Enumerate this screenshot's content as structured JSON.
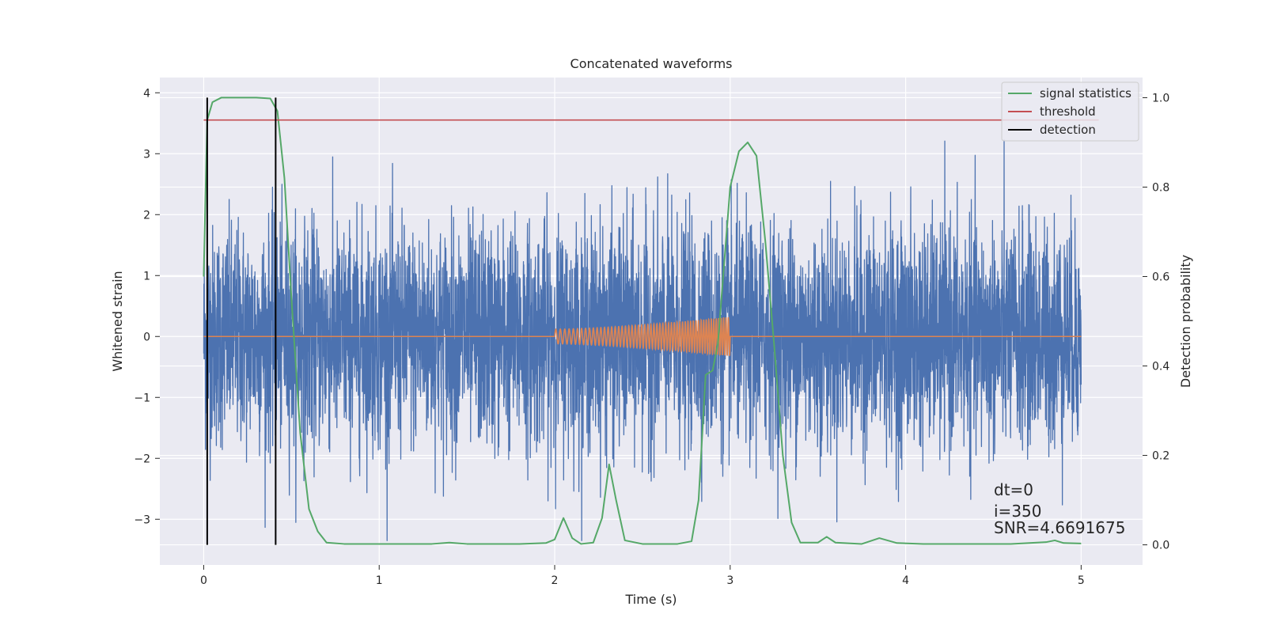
{
  "chart_data": {
    "type": "line",
    "title": "Concatenated waveforms",
    "xlabel": "Time (s)",
    "ylabel_left": "Whitened strain",
    "ylabel_right": "Detection probability",
    "xlim": [
      -0.25,
      5.35
    ],
    "ylim_left": [
      -3.75,
      4.25
    ],
    "ylim_right": [
      -0.045,
      1.045
    ],
    "x_ticks": [
      0,
      1,
      2,
      3,
      4,
      5
    ],
    "y_ticks_left": [
      -3,
      -2,
      -1,
      0,
      1,
      2,
      3,
      4
    ],
    "y_ticks_right": [
      0.0,
      0.2,
      0.4,
      0.6,
      0.8,
      1.0
    ],
    "x_tick_labels": [
      "0",
      "1",
      "2",
      "3",
      "4",
      "5"
    ],
    "y_tick_labels_left": [
      "−3",
      "−2",
      "−1",
      "0",
      "1",
      "2",
      "3",
      "4"
    ],
    "y_tick_labels_right": [
      "0.0",
      "0.2",
      "0.4",
      "0.6",
      "0.8",
      "1.0"
    ],
    "grid": true,
    "legend_position": "top-right",
    "colors": {
      "noise": "#4c72b0",
      "waveform": "#dd8452",
      "signal_statistics": "#55a868",
      "threshold": "#c44e52",
      "detection": "#000000",
      "background": "#eaeaf2",
      "grid": "#ffffff"
    },
    "series": [
      {
        "name": "",
        "role": "whitened strain (noise + signal), dense noise trace",
        "axis": "left",
        "x_range": [
          0,
          5
        ],
        "typical_band": [
          -1.0,
          1.0
        ],
        "extremes": [
          -3.35,
          3.75
        ]
      },
      {
        "name": "",
        "role": "injected waveform (chirp)",
        "axis": "left",
        "x_range": [
          0,
          5
        ],
        "chirp_x_range": [
          2.0,
          3.0
        ],
        "chirp_amplitude_start": 0.12,
        "chirp_amplitude_end": 0.32
      },
      {
        "name": "signal statistics",
        "axis": "right",
        "points": [
          [
            0.0,
            0.6
          ],
          [
            0.01,
            0.78
          ],
          [
            0.02,
            0.95
          ],
          [
            0.05,
            0.99
          ],
          [
            0.1,
            1.0
          ],
          [
            0.2,
            1.0
          ],
          [
            0.3,
            1.0
          ],
          [
            0.38,
            0.998
          ],
          [
            0.42,
            0.97
          ],
          [
            0.46,
            0.82
          ],
          [
            0.5,
            0.55
          ],
          [
            0.55,
            0.25
          ],
          [
            0.6,
            0.08
          ],
          [
            0.65,
            0.03
          ],
          [
            0.7,
            0.005
          ],
          [
            0.8,
            0.002
          ],
          [
            1.0,
            0.002
          ],
          [
            1.3,
            0.002
          ],
          [
            1.4,
            0.005
          ],
          [
            1.5,
            0.002
          ],
          [
            1.8,
            0.002
          ],
          [
            1.95,
            0.004
          ],
          [
            2.0,
            0.012
          ],
          [
            2.05,
            0.06
          ],
          [
            2.1,
            0.015
          ],
          [
            2.15,
            0.002
          ],
          [
            2.22,
            0.005
          ],
          [
            2.27,
            0.06
          ],
          [
            2.31,
            0.18
          ],
          [
            2.35,
            0.1
          ],
          [
            2.4,
            0.01
          ],
          [
            2.5,
            0.002
          ],
          [
            2.7,
            0.002
          ],
          [
            2.78,
            0.008
          ],
          [
            2.82,
            0.1
          ],
          [
            2.86,
            0.38
          ],
          [
            2.9,
            0.39
          ],
          [
            2.93,
            0.45
          ],
          [
            2.97,
            0.65
          ],
          [
            3.0,
            0.8
          ],
          [
            3.05,
            0.88
          ],
          [
            3.1,
            0.9
          ],
          [
            3.15,
            0.87
          ],
          [
            3.2,
            0.68
          ],
          [
            3.25,
            0.45
          ],
          [
            3.3,
            0.2
          ],
          [
            3.35,
            0.05
          ],
          [
            3.4,
            0.005
          ],
          [
            3.5,
            0.005
          ],
          [
            3.55,
            0.018
          ],
          [
            3.6,
            0.005
          ],
          [
            3.75,
            0.002
          ],
          [
            3.85,
            0.015
          ],
          [
            3.95,
            0.004
          ],
          [
            4.1,
            0.002
          ],
          [
            4.6,
            0.002
          ],
          [
            4.8,
            0.006
          ],
          [
            4.85,
            0.01
          ],
          [
            4.9,
            0.004
          ],
          [
            5.0,
            0.003
          ]
        ]
      },
      {
        "name": "threshold",
        "axis": "right",
        "x_range": [
          0,
          5.1
        ],
        "value": 0.95
      },
      {
        "name": "detection",
        "axis": "right",
        "x_values": [
          0.02,
          0.41
        ],
        "y_range": [
          0.0,
          1.0
        ]
      }
    ],
    "legend": [
      {
        "label": "signal statistics",
        "color": "#55a868"
      },
      {
        "label": "threshold",
        "color": "#c44e52"
      },
      {
        "label": "detection",
        "color": "#000000"
      }
    ],
    "annotations": [
      "dt=0",
      "i=350",
      "SNR=4.6691675"
    ]
  }
}
